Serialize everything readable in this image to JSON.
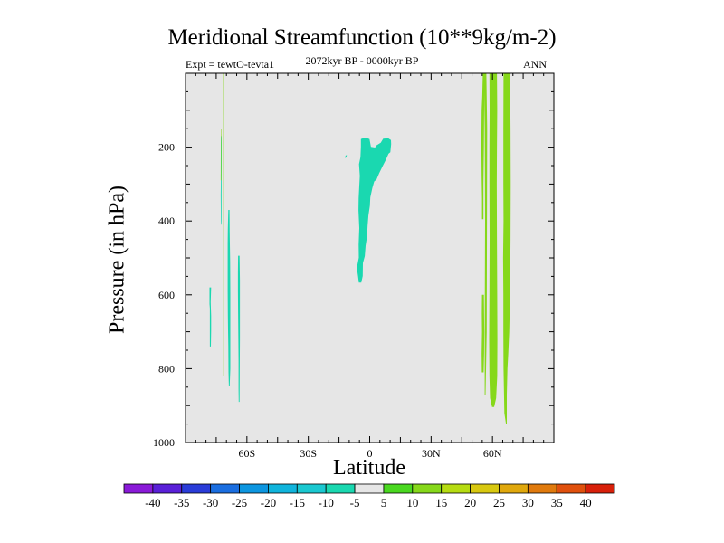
{
  "chart_data": {
    "type": "contour",
    "title": "Meridional Streamfunction (10**9kg/m-2)",
    "subtitle": "2072kyr BP - 0000kyr BP",
    "left_string": "Expt = tewtO-tevta1",
    "right_string": "ANN",
    "xlabel": "Latitude",
    "ylabel": "Pressure (in hPa)",
    "xlim": [
      -90,
      90
    ],
    "ylim": [
      1000,
      0
    ],
    "x_ticks": [
      {
        "value": -60,
        "label": "60S"
      },
      {
        "value": -30,
        "label": "30S"
      },
      {
        "value": 0,
        "label": "0"
      },
      {
        "value": 30,
        "label": "30N"
      },
      {
        "value": 60,
        "label": "60N"
      }
    ],
    "y_ticks": [
      {
        "value": 200,
        "label": "200"
      },
      {
        "value": 400,
        "label": "400"
      },
      {
        "value": 600,
        "label": "600"
      },
      {
        "value": 800,
        "label": "800"
      },
      {
        "value": 1000,
        "label": "1000"
      }
    ],
    "background_color": "#e6e6e6",
    "colorbar": {
      "labels": [
        "-40",
        "-35",
        "-30",
        "-25",
        "-20",
        "-15",
        "-10",
        "-5",
        "5",
        "10",
        "15",
        "20",
        "25",
        "30",
        "35",
        "40"
      ],
      "colors": [
        "#8a1ad8",
        "#5a20d8",
        "#2a3cd8",
        "#1a6ee0",
        "#0d96e0",
        "#10b4dc",
        "#1ac8d0",
        "#1ad8b0",
        "#e6e6e6",
        "#4ad820",
        "#86d81a",
        "#b6dc12",
        "#d8c810",
        "#e0a80d",
        "#e07a0d",
        "#e0500d",
        "#d8200a"
      ]
    },
    "regions": [
      {
        "name": "negative-shading-equator",
        "color": "#1ad8b0",
        "points": [
          [
            -5.3,
            567
          ],
          [
            -5.7,
            549
          ],
          [
            -6.3,
            527
          ],
          [
            -5.3,
            499
          ],
          [
            -5.4,
            464
          ],
          [
            -5.1,
            419
          ],
          [
            -5.5,
            371
          ],
          [
            -5.4,
            339
          ],
          [
            -5.1,
            305
          ],
          [
            -4.8,
            278
          ],
          [
            -5.2,
            246
          ],
          [
            -4.5,
            227
          ],
          [
            -4.3,
            199
          ],
          [
            -4.3,
            178
          ],
          [
            -2.2,
            174
          ],
          [
            -0.1,
            178
          ],
          [
            0.6,
            199
          ],
          [
            2.6,
            201
          ],
          [
            3.3,
            195
          ],
          [
            5.4,
            188
          ],
          [
            6.6,
            177
          ],
          [
            9.0,
            176
          ],
          [
            10.4,
            181
          ],
          [
            10.5,
            192
          ],
          [
            10.1,
            214
          ],
          [
            9.2,
            218
          ],
          [
            7.9,
            234
          ],
          [
            6.3,
            252
          ],
          [
            4.6,
            271
          ],
          [
            3.3,
            288
          ],
          [
            2.2,
            293
          ],
          [
            1.3,
            311
          ],
          [
            0.3,
            336
          ],
          [
            0.1,
            359
          ],
          [
            -0.6,
            385
          ],
          [
            -1.0,
            413
          ],
          [
            -1.3,
            442
          ],
          [
            -2.0,
            467
          ],
          [
            -2.4,
            495
          ],
          [
            -3.3,
            514
          ],
          [
            -3.4,
            549
          ],
          [
            -4.1,
            567
          ]
        ]
      },
      {
        "name": "negative-shading-fleck",
        "color": "#1ad8b0",
        "points": [
          [
            -12.0,
            230
          ],
          [
            -11.3,
            227
          ],
          [
            -11.2,
            221
          ],
          [
            -11.8,
            223
          ]
        ]
      },
      {
        "name": "negative-shading-south-1",
        "color": "#1ad8b0",
        "points": [
          [
            -78.1,
            637
          ],
          [
            -78.3,
            625
          ],
          [
            -78.3,
            580
          ],
          [
            -77.5,
            580
          ],
          [
            -77.7,
            620
          ],
          [
            -77.5,
            657
          ],
          [
            -77.5,
            695
          ],
          [
            -77.6,
            740
          ],
          [
            -78.1,
            740
          ]
        ]
      },
      {
        "name": "negative-shading-south-2",
        "color": "#1ad8b0",
        "points": [
          [
            -68.8,
            846
          ],
          [
            -69.0,
            810
          ],
          [
            -69.1,
            740
          ],
          [
            -69.2,
            695
          ],
          [
            -69.3,
            657
          ],
          [
            -69.4,
            590
          ],
          [
            -69.4,
            512
          ],
          [
            -69.4,
            460
          ],
          [
            -69.3,
            418
          ],
          [
            -69.1,
            370
          ],
          [
            -68.5,
            370
          ],
          [
            -68.4,
            430
          ],
          [
            -68.2,
            510
          ],
          [
            -68.1,
            595
          ],
          [
            -68.1,
            700
          ],
          [
            -68.1,
            800
          ],
          [
            -68.4,
            846
          ]
        ]
      },
      {
        "name": "negative-shading-south-3",
        "color": "#1ad8b0",
        "points": [
          [
            -64.0,
            890
          ],
          [
            -64.1,
            855
          ],
          [
            -64.1,
            780
          ],
          [
            -64.2,
            700
          ],
          [
            -64.3,
            650
          ],
          [
            -64.4,
            590
          ],
          [
            -64.4,
            537
          ],
          [
            -64.3,
            494
          ],
          [
            -63.6,
            494
          ],
          [
            -63.4,
            560
          ],
          [
            -63.4,
            640
          ],
          [
            -63.4,
            720
          ],
          [
            -63.5,
            800
          ],
          [
            -63.6,
            890
          ]
        ]
      },
      {
        "name": "negative-shading-south-4",
        "color": "#1ad8b0",
        "points": [
          [
            -72.6,
            410
          ],
          [
            -72.7,
            400
          ],
          [
            -72.8,
            330
          ],
          [
            -72.6,
            250
          ],
          [
            -72.6,
            200
          ],
          [
            -72.5,
            170
          ],
          [
            -72.3,
            170
          ],
          [
            -72.3,
            250
          ],
          [
            -72.4,
            330
          ],
          [
            -72.4,
            410
          ]
        ]
      },
      {
        "name": "positive-shading-south-line-1",
        "color": "#86d81a",
        "points": [
          [
            -71.6,
            0
          ],
          [
            -71.0,
            0
          ],
          [
            -71.1,
            250
          ],
          [
            -71.3,
            500
          ],
          [
            -71.3,
            820
          ],
          [
            -71.5,
            820
          ],
          [
            -71.5,
            500
          ]
        ]
      },
      {
        "name": "positive-shading-south-line-2",
        "color": "#86d81a",
        "points": [
          [
            -72.7,
            150
          ],
          [
            -72.5,
            150
          ],
          [
            -72.5,
            290
          ],
          [
            -72.8,
            290
          ]
        ]
      },
      {
        "name": "positive-shading-north-1",
        "color": "#86d81a",
        "points": [
          [
            54.8,
            810
          ],
          [
            54.7,
            760
          ],
          [
            54.9,
            700
          ],
          [
            54.8,
            650
          ],
          [
            54.9,
            600
          ],
          [
            55.8,
            600
          ],
          [
            55.9,
            650
          ],
          [
            56.0,
            700
          ],
          [
            55.9,
            760
          ],
          [
            55.7,
            810
          ]
        ]
      },
      {
        "name": "positive-shading-north-2",
        "color": "#86d81a",
        "points": [
          [
            54.9,
            395
          ],
          [
            54.9,
            340
          ],
          [
            54.7,
            280
          ],
          [
            54.6,
            220
          ],
          [
            54.6,
            160
          ],
          [
            54.7,
            100
          ],
          [
            55.0,
            60
          ],
          [
            55.3,
            0
          ],
          [
            56.3,
            0
          ],
          [
            56.0,
            60
          ],
          [
            55.9,
            120
          ],
          [
            55.8,
            200
          ],
          [
            55.6,
            300
          ],
          [
            55.6,
            395
          ]
        ]
      },
      {
        "name": "positive-shading-north-3",
        "color": "#86d81a",
        "points": [
          [
            59.8,
            904
          ],
          [
            58.8,
            880
          ],
          [
            58.5,
            820
          ],
          [
            58.4,
            720
          ],
          [
            58.5,
            600
          ],
          [
            58.6,
            450
          ],
          [
            58.5,
            300
          ],
          [
            58.5,
            200
          ],
          [
            58.6,
            100
          ],
          [
            58.5,
            0
          ],
          [
            62.2,
            0
          ],
          [
            62.3,
            100
          ],
          [
            62.2,
            200
          ],
          [
            62.1,
            300
          ],
          [
            62.2,
            450
          ],
          [
            62.3,
            600
          ],
          [
            62.4,
            720
          ],
          [
            62.3,
            820
          ],
          [
            61.8,
            880
          ],
          [
            60.8,
            904
          ]
        ]
      },
      {
        "name": "positive-shading-north-4",
        "color": "#86d81a",
        "points": [
          [
            66.6,
            950
          ],
          [
            65.8,
            920
          ],
          [
            65.4,
            800
          ],
          [
            65.3,
            700
          ],
          [
            65.3,
            600
          ],
          [
            65.2,
            500
          ],
          [
            65.4,
            400
          ],
          [
            65.3,
            300
          ],
          [
            65.3,
            150
          ],
          [
            65.4,
            0
          ],
          [
            68.6,
            0
          ],
          [
            68.8,
            150
          ],
          [
            68.9,
            300
          ],
          [
            68.8,
            450
          ],
          [
            68.6,
            600
          ],
          [
            68.2,
            700
          ],
          [
            67.7,
            760
          ],
          [
            67.3,
            800
          ],
          [
            67.0,
            870
          ],
          [
            67.0,
            950
          ]
        ]
      },
      {
        "name": "positive-shading-north-5",
        "color": "#86d81a",
        "points": [
          [
            55.8,
            0
          ],
          [
            57.0,
            0
          ],
          [
            57.4,
            150
          ],
          [
            57.3,
            400
          ],
          [
            57.2,
            700
          ],
          [
            56.6,
            870
          ],
          [
            56.2,
            870
          ],
          [
            56.2,
            700
          ],
          [
            56.4,
            400
          ],
          [
            56.2,
            150
          ]
        ]
      }
    ]
  }
}
